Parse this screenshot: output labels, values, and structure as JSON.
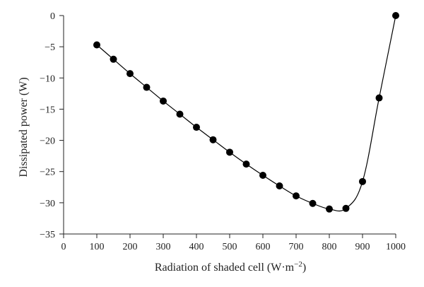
{
  "chart_data": {
    "type": "line",
    "title": "",
    "xlabel": "Radiation of shaded cell (W·m",
    "xlabel_sup": "−2",
    "xlabel_end": ")",
    "ylabel": "Dissipated power (W)",
    "xlim": [
      0,
      1000
    ],
    "ylim": [
      -35,
      0
    ],
    "xticks": [
      0,
      100,
      200,
      300,
      400,
      500,
      600,
      700,
      800,
      900,
      1000
    ],
    "yticks": [
      0,
      -5,
      -10,
      -15,
      -20,
      -25,
      -30,
      -35
    ],
    "grid": false,
    "legend": "none",
    "series": [
      {
        "x": [
          100,
          150,
          200,
          250,
          300,
          350,
          400,
          450,
          500,
          550,
          600,
          650,
          700,
          750,
          800,
          850,
          900,
          950,
          1000
        ],
        "y": [
          -4.7,
          -7.0,
          -9.3,
          -11.5,
          -13.7,
          -15.8,
          -17.9,
          -19.9,
          -21.9,
          -23.8,
          -25.6,
          -27.3,
          -28.9,
          -30.1,
          -31.0,
          -30.9,
          -26.6,
          -13.2,
          0.0
        ]
      }
    ]
  }
}
